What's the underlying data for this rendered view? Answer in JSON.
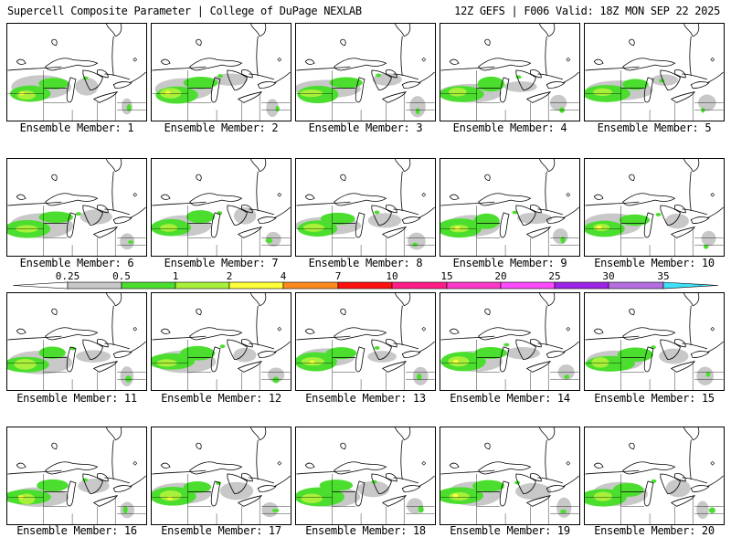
{
  "header": {
    "title": "Supercell Composite Parameter | College of DuPage NEXLAB",
    "run_info": "12Z GEFS | F006 Valid: 18Z MON SEP 22 2025"
  },
  "colorbar": {
    "labels": [
      "0.25",
      "0.5",
      "1",
      "2",
      "4",
      "7",
      "10",
      "15",
      "20",
      "25",
      "30",
      "35"
    ],
    "colors": [
      "#ffffff",
      "#c8c8c8",
      "#4bde2e",
      "#a8f03a",
      "#ffff3a",
      "#ff8b1e",
      "#ff1010",
      "#ff1e86",
      "#ff3ac8",
      "#ff4aff",
      "#9d24e6",
      "#b46ee0",
      "#40e0f8"
    ]
  },
  "members": [
    {
      "label": "Ensemble Member: 1",
      "variant": 0
    },
    {
      "label": "Ensemble Member: 2",
      "variant": 1
    },
    {
      "label": "Ensemble Member: 3",
      "variant": 2
    },
    {
      "label": "Ensemble Member: 4",
      "variant": 3
    },
    {
      "label": "Ensemble Member: 5",
      "variant": 4
    },
    {
      "label": "Ensemble Member: 6",
      "variant": 5
    },
    {
      "label": "Ensemble Member: 7",
      "variant": 6
    },
    {
      "label": "Ensemble Member: 8",
      "variant": 7
    },
    {
      "label": "Ensemble Member: 9",
      "variant": 8
    },
    {
      "label": "Ensemble Member: 10",
      "variant": 9
    },
    {
      "label": "Ensemble Member: 11",
      "variant": 10
    },
    {
      "label": "Ensemble Member: 12",
      "variant": 11
    },
    {
      "label": "Ensemble Member: 13",
      "variant": 12
    },
    {
      "label": "Ensemble Member: 14",
      "variant": 13
    },
    {
      "label": "Ensemble Member: 15",
      "variant": 14
    },
    {
      "label": "Ensemble Member: 16",
      "variant": 15
    },
    {
      "label": "Ensemble Member: 17",
      "variant": 16
    },
    {
      "label": "Ensemble Member: 18",
      "variant": 17
    },
    {
      "label": "Ensemble Member: 19",
      "variant": 18
    },
    {
      "label": "Ensemble Member: 20",
      "variant": 19
    }
  ]
}
